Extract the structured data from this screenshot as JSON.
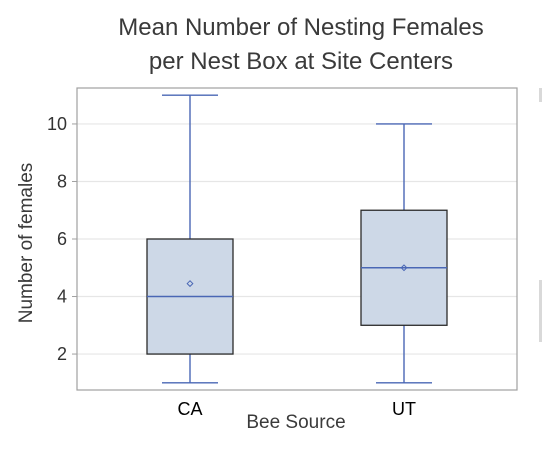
{
  "chart_data": {
    "type": "box",
    "title_lines": [
      "Mean Number of Nesting Females",
      "per Nest Box at Site Centers"
    ],
    "xlabel": "Bee Source",
    "ylabel": "Number of  females",
    "yticks": [
      2,
      4,
      6,
      8,
      10
    ],
    "ylim": [
      0.75,
      11.25
    ],
    "grid": true,
    "colors": {
      "box_fill": "#cdd8e7",
      "box_edge": "#2b2b2b",
      "median": "#4a67b5",
      "whisker": "#4a67b5",
      "mean_marker": "#4a67b5",
      "grid": "#e6e6e6",
      "frame": "#a0a0a0"
    },
    "boxes": [
      {
        "category": "CA",
        "min": 1,
        "q1": 2,
        "median": 4,
        "q3": 6,
        "max": 11,
        "mean": 4.45
      },
      {
        "category": "UT",
        "min": 1,
        "q1": 3,
        "median": 5,
        "q3": 7,
        "max": 10,
        "mean": 5.0
      }
    ]
  }
}
